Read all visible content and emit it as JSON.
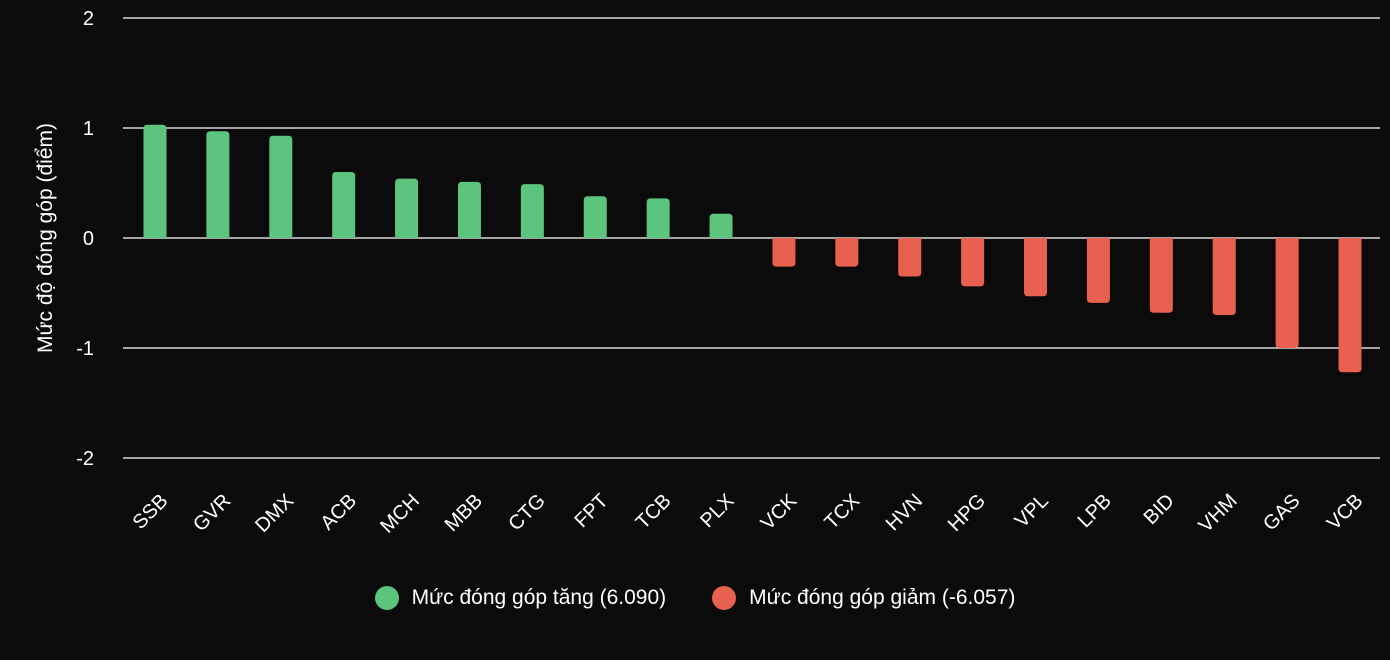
{
  "chart_data": {
    "type": "bar",
    "ylabel": "Mức độ đóng góp (điểm)",
    "ylim": [
      -2,
      2
    ],
    "yticks": [
      2,
      1,
      0,
      -1,
      -2
    ],
    "ytick_labels": [
      "2",
      "1",
      "0",
      "-1",
      "-2"
    ],
    "grid": true,
    "legend_position": "bottom",
    "colors": {
      "positive": "#5cc47c",
      "negative": "#e8604f",
      "background": "#0b0b0b",
      "grid": "#ffffff"
    },
    "categories": [
      "SSB",
      "GVR",
      "DMX",
      "ACB",
      "MCH",
      "MBB",
      "CTG",
      "FPT",
      "TCB",
      "PLX",
      "VCK",
      "TCX",
      "HVN",
      "HPG",
      "VPL",
      "LPB",
      "BID",
      "VHM",
      "GAS",
      "VCB"
    ],
    "series": [
      {
        "name": "Mức đóng góp tăng (6.090)",
        "values": [
          1.03,
          0.97,
          0.93,
          0.6,
          0.54,
          0.51,
          0.49,
          0.38,
          0.36,
          0.22,
          null,
          null,
          null,
          null,
          null,
          null,
          null,
          null,
          null,
          null
        ]
      },
      {
        "name": "Mức đóng góp giảm (-6.057)",
        "values": [
          null,
          null,
          null,
          null,
          null,
          null,
          null,
          null,
          null,
          null,
          -0.26,
          -0.26,
          -0.35,
          -0.44,
          -0.53,
          -0.59,
          -0.68,
          -0.7,
          -1.0,
          -1.22
        ]
      }
    ]
  }
}
